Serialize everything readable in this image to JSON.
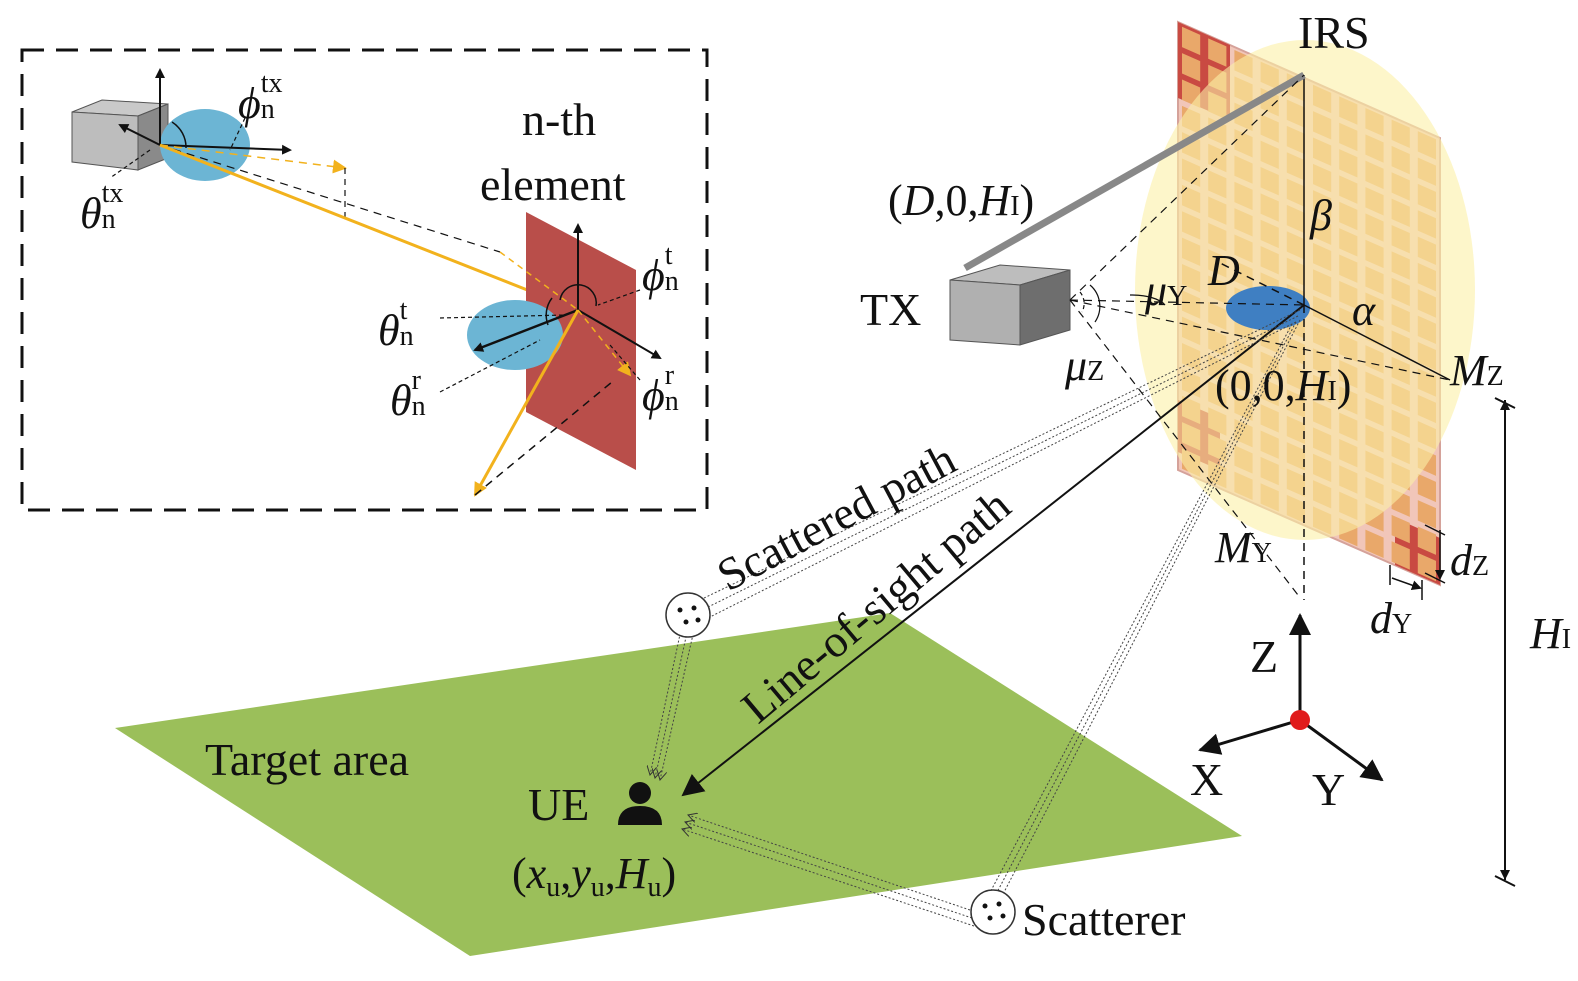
{
  "labels": {
    "irs": "IRS",
    "tx": "TX",
    "ue": "UE",
    "target_area": "Target area",
    "scatterer": "Scatterer",
    "scattered_path": "Scattered path",
    "los_path": "Line-of-sight path",
    "nth_element_line1": "n-th",
    "nth_element_line2": "element",
    "tx_coord": "(D,0,H",
    "tx_coord_sub": "I",
    "irs_center_coord": "(0,0,H",
    "irs_center_sub": "I",
    "ue_coord": "(x",
    "ue_coord_sub": "u",
    "ue_coord_mid": ",y",
    "ue_coord_sub2": "u",
    "ue_coord_mid2": ",H",
    "ue_coord_sub3": "u",
    "close_paren": ")",
    "alpha": "α",
    "beta": "β",
    "D": "D",
    "mu": "μ",
    "mu_y_sub": "Y",
    "mu_z_sub": "Z",
    "M": "M",
    "M_z_sub": "Z",
    "M_y_sub": "Y",
    "d": "d",
    "d_z_sub": "Z",
    "d_y_sub": "Y",
    "H": "H",
    "H_i_sub": "I",
    "axis_x": "X",
    "axis_y": "Y",
    "axis_z": "Z",
    "theta": "θ",
    "phi": "ϕ",
    "n": "n",
    "tx_sup": "tx",
    "t_sup": "t",
    "r_sup": "r"
  },
  "colors": {
    "ground": "#9bbf5a",
    "irs_panel": "#f2c9a8",
    "irs_cell": "#e9a86a",
    "irs_red": "#c94a42",
    "halo": "#fbf0a6",
    "beam": "#6cb5d4",
    "tx_box": "#8a8a8a",
    "ray": "#f2b21d",
    "element": "#b94e4a"
  }
}
